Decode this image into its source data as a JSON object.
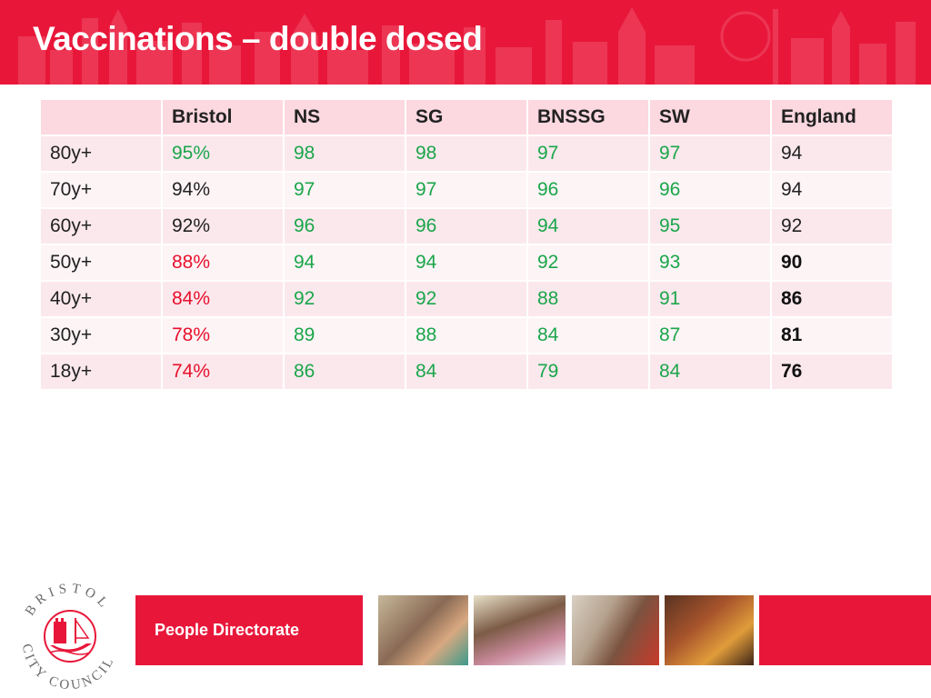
{
  "slide": {
    "title": "Vaccinations – double dosed",
    "footer_text": "People Directorate",
    "logo_text": "BRISTOL CITY COUNCIL"
  },
  "colors": {
    "header_red": "#e8173a",
    "good_green": "#1aa64a",
    "bad_red": "#e8102c"
  },
  "table": {
    "headers": [
      "",
      "Bristol",
      "NS",
      "SG",
      "BNSSG",
      "SW",
      "England"
    ],
    "rows": [
      {
        "label": "80y+",
        "cells": [
          "95%",
          "98",
          "98",
          "97",
          "97",
          "94"
        ],
        "styles": [
          "g",
          "g",
          "g",
          "g",
          "g",
          "k"
        ]
      },
      {
        "label": "70y+",
        "cells": [
          "94%",
          "97",
          "97",
          "96",
          "96",
          "94"
        ],
        "styles": [
          "k",
          "g",
          "g",
          "g",
          "g",
          "k"
        ]
      },
      {
        "label": "60y+",
        "cells": [
          "92%",
          "96",
          "96",
          "94",
          "95",
          "92"
        ],
        "styles": [
          "k",
          "g",
          "g",
          "g",
          "g",
          "k"
        ]
      },
      {
        "label": "50y+",
        "cells": [
          "88%",
          "94",
          "94",
          "92",
          "93",
          "90"
        ],
        "styles": [
          "r",
          "g",
          "g",
          "g",
          "g",
          "b"
        ]
      },
      {
        "label": "40y+",
        "cells": [
          "84%",
          "92",
          "92",
          "88",
          "91",
          "86"
        ],
        "styles": [
          "r",
          "g",
          "g",
          "g",
          "g",
          "b"
        ]
      },
      {
        "label": "30y+",
        "cells": [
          "78%",
          "89",
          "88",
          "84",
          "87",
          "81"
        ],
        "styles": [
          "r",
          "g",
          "g",
          "g",
          "g",
          "b"
        ]
      },
      {
        "label": "18y+",
        "cells": [
          "74%",
          "86",
          "84",
          "79",
          "84",
          "76"
        ],
        "styles": [
          "r",
          "g",
          "g",
          "g",
          "g",
          "b"
        ]
      }
    ]
  }
}
